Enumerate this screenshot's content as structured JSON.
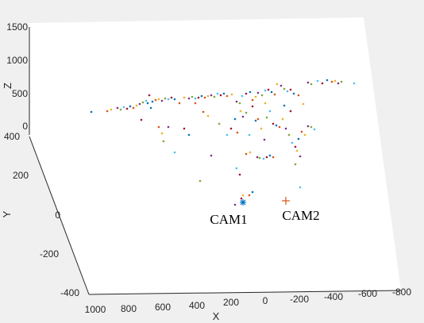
{
  "chart_data": {
    "type": "scatter",
    "dimensions": 3,
    "xlabel": "X",
    "ylabel": "Y",
    "zlabel": "Z",
    "xlim": [
      -800,
      1000
    ],
    "ylim": [
      -400,
      400
    ],
    "zlim": [
      0,
      1500
    ],
    "x_ticks": [
      "1000",
      "800",
      "600",
      "400",
      "200",
      "0",
      "-200",
      "-400",
      "-600",
      "-800"
    ],
    "y_ticks": [
      "-400",
      "-200",
      "0",
      "200",
      "400"
    ],
    "z_ticks": [
      "0",
      "500",
      "1000",
      "1500"
    ],
    "colors": [
      "#0072BD",
      "#D95319",
      "#EDB120",
      "#7E2F8E",
      "#77AC30",
      "#4DBEEE",
      "#A2142F"
    ],
    "cameras": [
      {
        "name": "CAM1",
        "marker": "*",
        "color": "#0072BD",
        "x": 100,
        "y": 0,
        "z": 0
      },
      {
        "name": "CAM2",
        "marker": "+",
        "color": "#D95319",
        "x": -100,
        "y": 0,
        "z": 0
      }
    ],
    "grid": false,
    "legend": "none"
  }
}
